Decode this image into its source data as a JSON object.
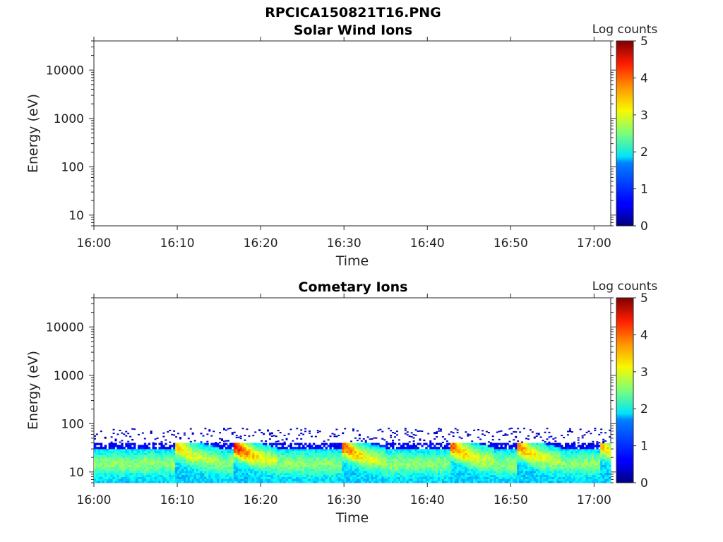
{
  "figure": {
    "title": "RPCICA150821T16.PNG"
  },
  "chart_data": [
    {
      "type": "heatmap",
      "title": "Solar Wind Ions",
      "xlabel": "Time",
      "ylabel": "Energy (eV)",
      "yscale": "log",
      "xlim": [
        "16:00",
        "17:02"
      ],
      "ylim": [
        6,
        40000
      ],
      "xticks": [
        "16:00",
        "16:10",
        "16:20",
        "16:30",
        "16:40",
        "16:50",
        "17:00"
      ],
      "yticks": [
        "10",
        "100",
        "1000",
        "10000"
      ],
      "colorbar": {
        "label": "Log counts",
        "range": [
          0,
          5
        ],
        "ticks": [
          "0",
          "1",
          "2",
          "3",
          "4",
          "5"
        ],
        "colormap": "jet"
      },
      "bands": []
    },
    {
      "type": "heatmap",
      "title": "Cometary Ions",
      "xlabel": "Time",
      "ylabel": "Energy (eV)",
      "yscale": "log",
      "xlim": [
        "16:00",
        "17:02"
      ],
      "ylim": [
        6,
        40000
      ],
      "xticks": [
        "16:00",
        "16:10",
        "16:20",
        "16:30",
        "16:40",
        "16:50",
        "17:00"
      ],
      "yticks": [
        "10",
        "100",
        "1000",
        "10000"
      ],
      "colorbar": {
        "label": "Log counts",
        "range": [
          0,
          5
        ],
        "ticks": [
          "0",
          "1",
          "2",
          "3",
          "4",
          "5"
        ],
        "colormap": "jet"
      },
      "bands": [
        {
          "energy_eV": [
            6,
            40
          ],
          "peak_log_counts": 3.0,
          "comment": ""
        }
      ],
      "events": [
        {
          "time": "16:10",
          "peak_log_counts": 3.0
        },
        {
          "time": "16:17",
          "peak_log_counts": 4.0
        },
        {
          "time": "16:30",
          "peak_log_counts": 3.6
        },
        {
          "time": "16:43",
          "peak_log_counts": 3.6
        },
        {
          "time": "16:51",
          "peak_log_counts": 3.4
        },
        {
          "time": "17:01",
          "peak_log_counts": 3.0
        }
      ]
    }
  ]
}
